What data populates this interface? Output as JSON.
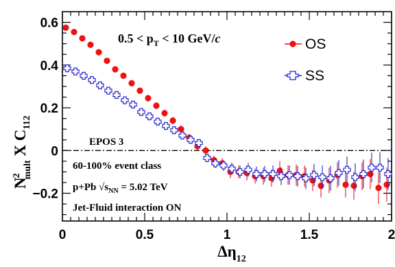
{
  "chart_data": {
    "type": "scatter",
    "title": "",
    "xlim": [
      0,
      2
    ],
    "ylim": [
      -0.33,
      0.65
    ],
    "xticks": [
      {
        "value": 0,
        "label": "0"
      },
      {
        "value": 0.5,
        "label": "0.5"
      },
      {
        "value": 1,
        "label": "1"
      },
      {
        "value": 1.5,
        "label": "1.5"
      },
      {
        "value": 2,
        "label": "2"
      }
    ],
    "yticks": [
      {
        "value": -0.2,
        "label": "−0.2"
      },
      {
        "value": 0,
        "label": "0"
      },
      {
        "value": 0.2,
        "label": "0.2"
      },
      {
        "value": 0.4,
        "label": "0.4"
      },
      {
        "value": 0.6,
        "label": "0.6"
      }
    ],
    "xlabel": {
      "main": "Δη",
      "sub": "12"
    },
    "ylabel": {
      "n": "N",
      "sup": "2",
      "sub": "mult",
      "x": " X C",
      "csub": "112"
    },
    "reference_line": 0,
    "grid": false,
    "legend_position": "top-right",
    "annotations": {
      "pt_range": {
        "left": "0.5 < p",
        "sub": "T",
        "right": " < 10 GeV/",
        "italic": "c"
      },
      "model": "EPOS 3",
      "centrality": "60-100% event class",
      "system": {
        "left": "p+Pb  √s",
        "sub": "NN",
        "right": " = 5.02 TeV"
      },
      "setting": "Jet-Fluid interaction ON"
    },
    "series": [
      {
        "name": "OS",
        "color": "#ee1111",
        "marker": "filled-circle",
        "x": [
          0.025,
          0.075,
          0.125,
          0.175,
          0.225,
          0.275,
          0.325,
          0.375,
          0.425,
          0.475,
          0.525,
          0.575,
          0.625,
          0.675,
          0.725,
          0.775,
          0.825,
          0.875,
          0.925,
          0.975,
          1.025,
          1.075,
          1.125,
          1.175,
          1.225,
          1.275,
          1.325,
          1.375,
          1.425,
          1.475,
          1.525,
          1.575,
          1.625,
          1.675,
          1.725,
          1.775,
          1.825,
          1.875,
          1.925,
          1.975
        ],
        "y": [
          0.575,
          0.555,
          0.525,
          0.495,
          0.46,
          0.42,
          0.38,
          0.35,
          0.315,
          0.28,
          0.245,
          0.21,
          0.175,
          0.14,
          0.1,
          0.06,
          0.02,
          0.0,
          -0.045,
          -0.06,
          -0.1,
          -0.1,
          -0.105,
          -0.12,
          -0.12,
          -0.13,
          -0.095,
          -0.115,
          -0.115,
          -0.12,
          -0.14,
          -0.165,
          -0.14,
          -0.115,
          -0.16,
          -0.165,
          -0.12,
          -0.11,
          -0.175,
          -0.16
        ],
        "err": [
          0.012,
          0.012,
          0.012,
          0.013,
          0.013,
          0.013,
          0.014,
          0.014,
          0.015,
          0.015,
          0.016,
          0.016,
          0.016,
          0.017,
          0.018,
          0.018,
          0.02,
          0.02,
          0.022,
          0.025,
          0.03,
          0.03,
          0.035,
          0.035,
          0.04,
          0.04,
          0.045,
          0.045,
          0.05,
          0.05,
          0.05,
          0.055,
          0.06,
          0.06,
          0.06,
          0.065,
          0.065,
          0.07,
          0.075,
          0.08
        ]
      },
      {
        "name": "SS",
        "color": "#2222cc",
        "marker": "open-cross",
        "x": [
          0.025,
          0.075,
          0.125,
          0.175,
          0.225,
          0.275,
          0.325,
          0.375,
          0.425,
          0.475,
          0.525,
          0.575,
          0.625,
          0.675,
          0.725,
          0.775,
          0.825,
          0.875,
          0.925,
          0.975,
          1.025,
          1.075,
          1.125,
          1.175,
          1.225,
          1.275,
          1.325,
          1.375,
          1.425,
          1.475,
          1.525,
          1.575,
          1.625,
          1.675,
          1.725,
          1.775,
          1.825,
          1.875,
          1.925,
          1.975
        ],
        "y": [
          0.385,
          0.37,
          0.35,
          0.33,
          0.305,
          0.28,
          0.26,
          0.235,
          0.215,
          0.18,
          0.16,
          0.135,
          0.115,
          0.095,
          0.07,
          0.05,
          0.035,
          -0.035,
          -0.06,
          -0.07,
          -0.085,
          -0.1,
          -0.09,
          -0.11,
          -0.11,
          -0.11,
          -0.12,
          -0.115,
          -0.12,
          -0.13,
          -0.115,
          -0.125,
          -0.13,
          -0.105,
          -0.09,
          -0.125,
          -0.11,
          -0.08,
          -0.08,
          -0.11
        ],
        "err": [
          0.01,
          0.01,
          0.01,
          0.011,
          0.011,
          0.011,
          0.012,
          0.012,
          0.013,
          0.013,
          0.014,
          0.014,
          0.015,
          0.015,
          0.016,
          0.016,
          0.018,
          0.02,
          0.022,
          0.025,
          0.028,
          0.03,
          0.032,
          0.035,
          0.038,
          0.04,
          0.042,
          0.045,
          0.048,
          0.05,
          0.052,
          0.055,
          0.058,
          0.06,
          0.062,
          0.065,
          0.068,
          0.07,
          0.072,
          0.075
        ]
      }
    ]
  }
}
